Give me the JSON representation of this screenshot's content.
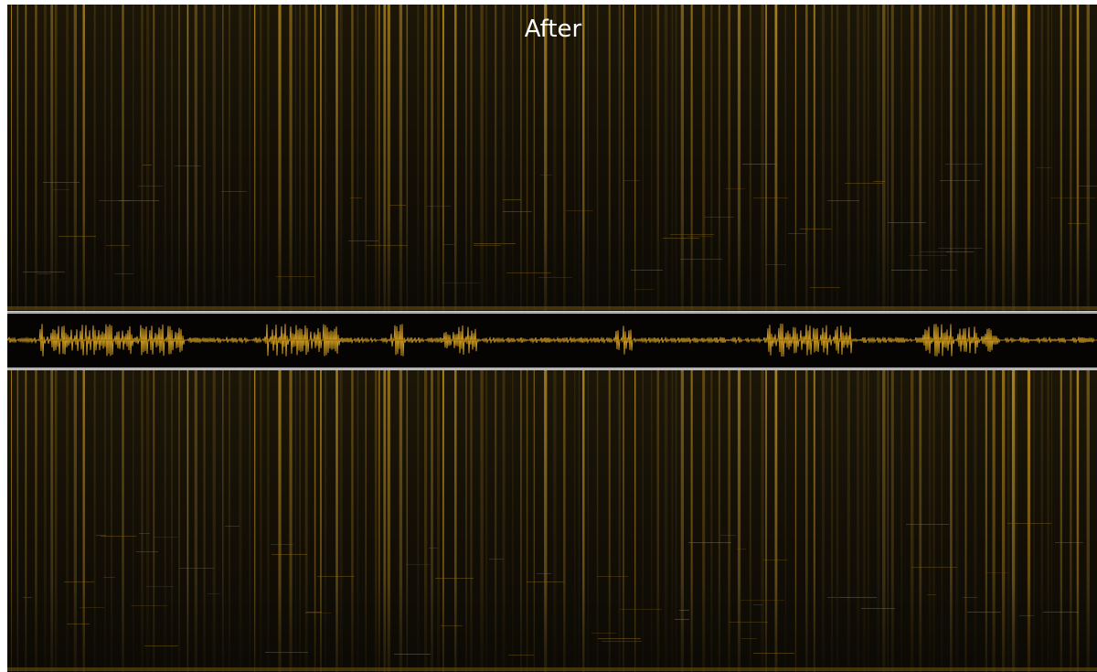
{
  "header": {
    "title": "After"
  }
}
